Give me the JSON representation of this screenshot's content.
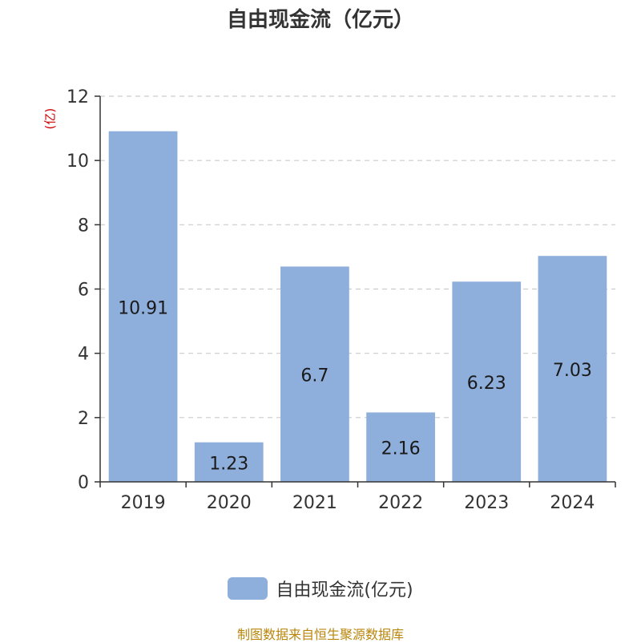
{
  "chart_data": {
    "type": "bar",
    "title": "自由现金流（亿元）",
    "unit_label": "(亿)",
    "categories": [
      "2019",
      "2020",
      "2021",
      "2022",
      "2023",
      "2024"
    ],
    "series": [
      {
        "name": "自由现金流(亿元)",
        "values": [
          10.91,
          1.23,
          6.7,
          2.16,
          6.23,
          7.03
        ]
      }
    ],
    "data_labels": [
      "10.91",
      "1.23",
      "6.7",
      "2.16",
      "6.23",
      "7.03"
    ],
    "yticks": [
      0,
      2,
      4,
      6,
      8,
      10,
      12
    ],
    "ylim": [
      0,
      12
    ],
    "grid": true,
    "legend_position": "bottom",
    "bar_color": "#8eaedb"
  },
  "source": "制图数据来自恒生聚源数据库"
}
